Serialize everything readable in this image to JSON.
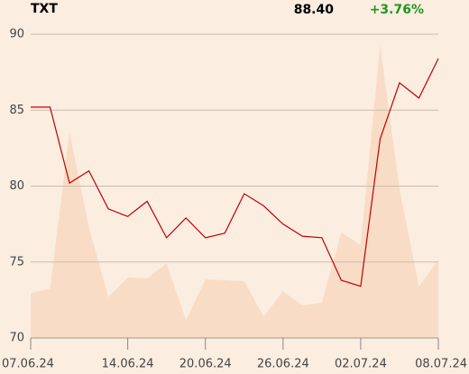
{
  "header": {
    "symbol": "TXT",
    "last": "88.40",
    "change": "+3.76%"
  },
  "chart_data": {
    "type": "line",
    "categories": [
      "07.06.24",
      null,
      null,
      null,
      null,
      "14.06.24",
      null,
      null,
      null,
      "20.06.24",
      null,
      null,
      null,
      "26.06.24",
      null,
      null,
      null,
      "02.07.24",
      null,
      null,
      null,
      "08.07.24"
    ],
    "values": [
      85.2,
      85.2,
      80.2,
      81.0,
      78.5,
      78.0,
      79.0,
      76.6,
      77.9,
      76.6,
      76.9,
      79.5,
      78.7,
      77.5,
      76.7,
      76.6,
      73.8,
      73.4,
      83.1,
      86.8,
      85.8,
      88.4
    ],
    "color": "#c00000",
    "volume": {
      "axis": "y2",
      "color": "#f9dcc5",
      "values": [
        14.8,
        16.3,
        67.7,
        36.5,
        13.4,
        19.9,
        19.6,
        24.6,
        5.9,
        19.3,
        19.0,
        18.7,
        7.1,
        15.4,
        10.7,
        11.6,
        34.7,
        30.6,
        96.4,
        49.0,
        16.9,
        25.8
      ]
    },
    "ylim": [
      70,
      90
    ],
    "yticks": [
      70,
      75,
      80,
      85,
      90
    ],
    "y2lim": [
      0,
      100
    ],
    "grid": true
  }
}
